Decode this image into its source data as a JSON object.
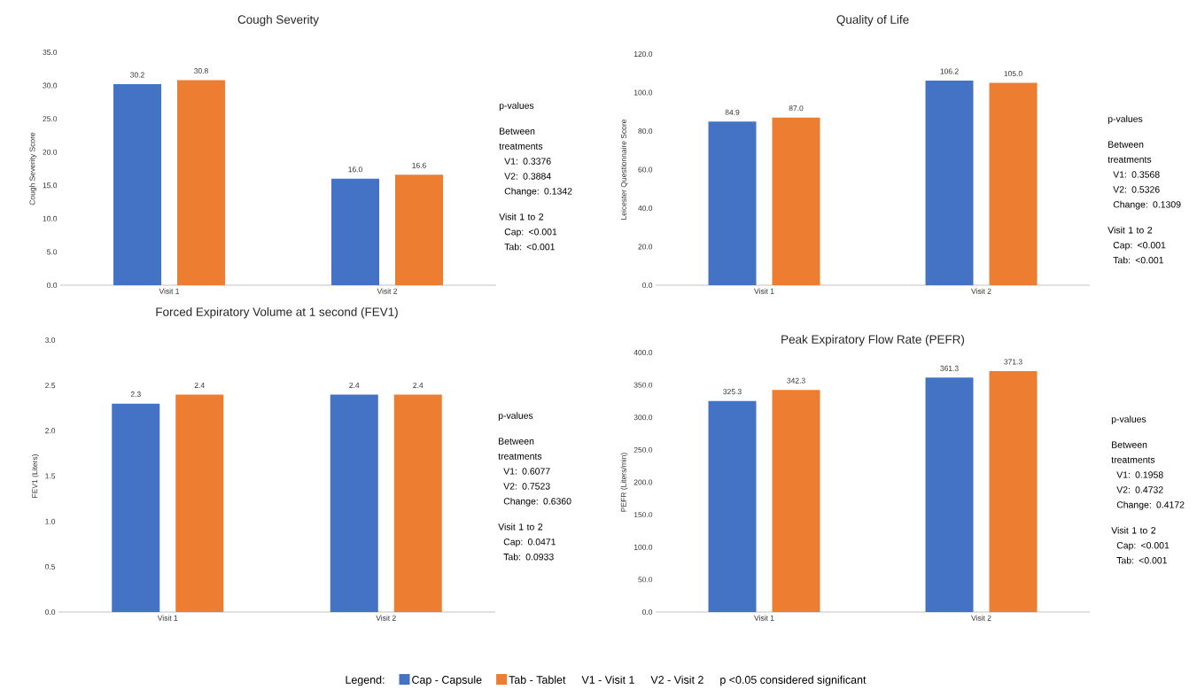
{
  "chart_data": [
    {
      "type": "bar",
      "title": "Cough Severity",
      "ylabel": "Cough Severity Score",
      "categories": [
        "Visit 1",
        "Visit 2"
      ],
      "series": [
        {
          "color": "#4472c4",
          "values": [
            30.2,
            16.0
          ],
          "value_labels": [
            "30.2",
            "16.0"
          ]
        },
        {
          "color": "#ed7d31",
          "values": [
            30.8,
            16.6
          ],
          "value_labels": [
            "30.8",
            "16.6"
          ]
        }
      ],
      "ylim": [
        0,
        35
      ],
      "yticks": [
        {
          "value": 0,
          "label": "0.0"
        },
        {
          "value": 5,
          "label": "5.0"
        },
        {
          "value": 10,
          "label": "10.0"
        },
        {
          "value": 15,
          "label": "15.0"
        },
        {
          "value": 20,
          "label": "20.0"
        },
        {
          "value": 25,
          "label": "25.0"
        },
        {
          "value": 30,
          "label": "30.0"
        },
        {
          "value": 35,
          "label": "35.0"
        }
      ],
      "annotations": [
        "p-values",
        "Between treatments",
        "V1: 0.3376",
        "V2: 0.3884",
        "Change: 0.1342",
        "Visit 1 to 2",
        "Cap: <0.001",
        "Tab: <0.001"
      ]
    },
    {
      "type": "bar",
      "title": "Quality of Life",
      "ylabel": "Leicester Questionnaire Score",
      "categories": [
        "Visit 1",
        "Visit 2"
      ],
      "series": [
        {
          "color": "#4472c4",
          "values": [
            84.9,
            106.2
          ],
          "value_labels": [
            "84.9",
            "106.2"
          ]
        },
        {
          "color": "#ed7d31",
          "values": [
            87.0,
            105.0
          ],
          "value_labels": [
            "87.0",
            "105.0"
          ]
        }
      ],
      "ylim": [
        0,
        120
      ],
      "yticks": [
        {
          "value": 0,
          "label": "0.0"
        },
        {
          "value": 20,
          "label": "20.0"
        },
        {
          "value": 40,
          "label": "40.0"
        },
        {
          "value": 60,
          "label": "60.0"
        },
        {
          "value": 80,
          "label": "80.0"
        },
        {
          "value": 100,
          "label": "100.0"
        },
        {
          "value": 120,
          "label": "120.0"
        }
      ],
      "annotations": [
        "p-values",
        "Between treatments",
        "V1: 0.3568",
        "V2: 0.5326",
        "Change: 0.1309",
        "Visit 1 to 2",
        "Cap: <0.001",
        "Tab: <0.001"
      ]
    },
    {
      "type": "bar",
      "title": "Forced Expiratory Volume at 1 second (FEV1)",
      "ylabel": "FEV1 (Liters)",
      "categories": [
        "Visit 1",
        "Visit 2"
      ],
      "series": [
        {
          "name": "Cap - Capsule",
          "color": "#4472c4",
          "values": [
            2.3,
            2.4
          ],
          "value_labels": [
            "2.3",
            "2.4"
          ]
        },
        {
          "name": "Tab - Tablet",
          "color": "#ed7d31",
          "values": [
            2.4,
            2.4
          ],
          "value_labels": [
            "2.4",
            "2.4"
          ]
        }
      ],
      "ylim": [
        0,
        3
      ],
      "yticks": [
        {
          "value": 0,
          "label": "0.0"
        },
        {
          "value": 0.5,
          "label": "0.5"
        },
        {
          "value": 1,
          "label": "1.0"
        },
        {
          "value": 1.5,
          "label": "1.5"
        },
        {
          "value": 2,
          "label": "2.0"
        },
        {
          "value": 2.5,
          "label": "2.5"
        },
        {
          "value": 3,
          "label": "3.0"
        }
      ],
      "legend": "bottom",
      "legend_title": "Legend:",
      "annotations": [
        "p-values",
        "Between treatments",
        "V1: 0.6077",
        "V2: 0.7523",
        "Change: 0.6360",
        "Visit 1 to 2",
        "Cap: 0.0471",
        "Tab: 0.0933",
        "V1 - Visit 1",
        "V2 - Visit 2",
        "p <0.05 considered significant"
      ]
    },
    {
      "type": "bar",
      "title": "Peak Expiratory Flow Rate (PEFR)",
      "ylabel": "PEFR (Liters/min)",
      "categories": [
        "Visit 1",
        "Visit 2"
      ],
      "series": [
        {
          "color": "#4472c4",
          "values": [
            325.3,
            361.3
          ],
          "value_labels": [
            "325.3",
            "361.3"
          ]
        },
        {
          "color": "#ed7d31",
          "values": [
            342.3,
            371.3
          ],
          "value_labels": [
            "342.3",
            "371.3"
          ]
        }
      ],
      "ylim": [
        0,
        400
      ],
      "yticks": [
        {
          "value": 0,
          "label": "0.0"
        },
        {
          "value": 50,
          "label": "50.0"
        },
        {
          "value": 100,
          "label": "100.0"
        },
        {
          "value": 150,
          "label": "150.0"
        },
        {
          "value": 200,
          "label": "200.0"
        },
        {
          "value": 250,
          "label": "250.0"
        },
        {
          "value": 300,
          "label": "300.0"
        },
        {
          "value": 350,
          "label": "350.0"
        },
        {
          "value": 400,
          "label": "400.0"
        }
      ],
      "annotations": [
        "p-values",
        "Between treatments",
        "V1: 0.1958",
        "V2: 0.4732",
        "Change: 0.4172",
        "Visit 1 to 2",
        "Cap: <0.001",
        "Tab: <0.001"
      ]
    }
  ]
}
